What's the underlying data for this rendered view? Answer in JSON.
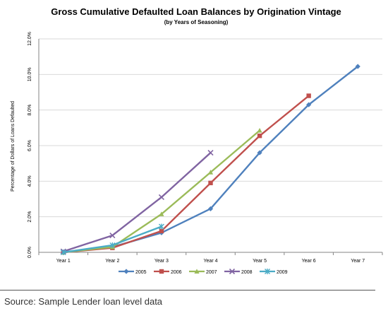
{
  "chart_data": {
    "type": "line",
    "title": "Gross Cumulative Defaulted Loan Balances by Origination Vintage",
    "subtitle": "(by Years of Seasoning)",
    "xlabel": "",
    "ylabel": "Percentage of Dollars of Loans Defaulted",
    "categories": [
      "Year 1",
      "Year 2",
      "Year 3",
      "Year 4",
      "Year 5",
      "Year 6",
      "Year 7"
    ],
    "y_ticks": [
      "0.0%",
      "2.0%",
      "4.0%",
      "6.0%",
      "8.0%",
      "10.0%",
      "12.0%"
    ],
    "ylim": [
      0,
      12
    ],
    "grid": true,
    "legend_position": "bottom",
    "series": [
      {
        "name": "2005",
        "color": "#4F81BD",
        "marker": "diamond",
        "values": [
          0.0,
          0.3,
          1.1,
          2.45,
          5.6,
          8.3,
          10.45
        ]
      },
      {
        "name": "2006",
        "color": "#C0504D",
        "marker": "square",
        "values": [
          0.0,
          0.25,
          1.2,
          3.9,
          6.55,
          8.8,
          null
        ]
      },
      {
        "name": "2007",
        "color": "#9BBB59",
        "marker": "triangle",
        "values": [
          0.0,
          0.3,
          2.15,
          4.5,
          6.85,
          null,
          null
        ]
      },
      {
        "name": "2008",
        "color": "#8064A2",
        "marker": "x",
        "values": [
          0.05,
          0.95,
          3.1,
          5.6,
          null,
          null,
          null
        ]
      },
      {
        "name": "2009",
        "color": "#4BACC6",
        "marker": "star",
        "values": [
          0.0,
          0.4,
          1.45,
          null,
          null,
          null,
          null
        ]
      }
    ]
  },
  "footer": {
    "source": "Source: Sample Lender loan level data"
  }
}
